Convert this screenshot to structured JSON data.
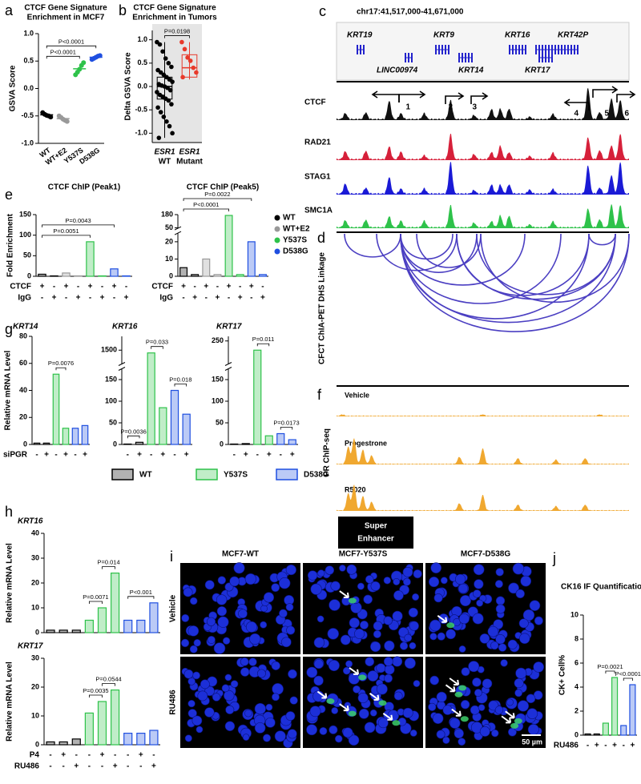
{
  "figure": {
    "panel_labels": [
      "a",
      "b",
      "c",
      "d",
      "e",
      "f",
      "g",
      "h",
      "i",
      "j"
    ],
    "genome": {
      "region": "chr17:41,517,000-41,671,000",
      "genes": [
        "KRT19",
        "LINC00974",
        "KRT9",
        "KRT14",
        "KRT16",
        "KRT42P",
        "KRT17"
      ],
      "tracks": [
        {
          "name": "CTCF",
          "color": "#111111"
        },
        {
          "name": "RAD21",
          "color": "#d6203a"
        },
        {
          "name": "STAG1",
          "color": "#1a1ad6"
        },
        {
          "name": "SMC1A",
          "color": "#2ec24a"
        }
      ],
      "peak_labels": [
        "1",
        "2",
        "3",
        "4",
        "5",
        "6"
      ]
    },
    "linkage_label": "CFCT ChIA-PET DHS Linkage",
    "pr": {
      "label": "PR ChIP-seq",
      "tracks": [
        "Vehicle",
        "Progestrone",
        "R5020"
      ],
      "color": "#f0a830"
    },
    "super_enhancer": [
      "Super",
      "Enhancer"
    ],
    "mutant_legend": [
      {
        "name": "WT",
        "color": "#000000"
      },
      {
        "name": "Y537S",
        "color": "#2ec24a"
      },
      {
        "name": "D538G",
        "color": "#1f4fe0"
      }
    ],
    "if_images": {
      "columns": [
        "MCF7-WT",
        "MCF7-Y537S",
        "MCF7-D538G"
      ],
      "rows": [
        "Vehicle",
        "RU486"
      ],
      "scale": "50 µm"
    }
  },
  "chart_data": [
    {
      "type": "dot",
      "title": [
        "CTCF Gene Signature",
        "Enrichment in MCF7"
      ],
      "y_label": "GSVA Score",
      "categories": [
        "WT",
        "WT+E2",
        "Y537S",
        "D538G"
      ],
      "colors": [
        "#000000",
        "#999999",
        "#2ec24a",
        "#1f4fe0"
      ],
      "values": [
        -0.48,
        -0.55,
        0.36,
        0.57
      ],
      "points": [
        [
          -0.44,
          -0.47,
          -0.49,
          -0.5,
          -0.52
        ],
        [
          -0.5,
          -0.53,
          -0.56,
          -0.58,
          -0.6
        ],
        [
          0.25,
          0.3,
          0.35,
          0.42,
          0.47
        ],
        [
          0.53,
          0.55,
          0.57,
          0.59,
          0.6
        ]
      ],
      "ylim": [
        -1.0,
        1.0
      ],
      "yticks": [
        {
          "value": -1,
          "label": "-1.0"
        },
        {
          "value": -0.5,
          "label": "-0.5"
        },
        {
          "value": 0,
          "label": "0.0"
        },
        {
          "value": 0.5,
          "label": "0.5"
        },
        {
          "value": 1,
          "label": "1.0"
        }
      ],
      "annotations": [
        {
          "text": "P<0.0001",
          "between": [
            0,
            2
          ]
        },
        {
          "text": "P<0.0001",
          "between": [
            0,
            3
          ]
        }
      ]
    },
    {
      "type": "box",
      "title": [
        "CTCF Gene Signature",
        "Enrichment in Tumors"
      ],
      "y_label": "Delta GSVA Score",
      "categories": [
        [
          "ESR1",
          "WT"
        ],
        [
          "ESR1",
          "Mutant"
        ]
      ],
      "colors": [
        "#000000",
        "#e8392a"
      ],
      "boxes": [
        {
          "whisker_low": -1.1,
          "q1": -0.27,
          "median": 0.0,
          "q3": 0.2,
          "whisker_high": 0.95
        },
        {
          "whisker_low": 0.15,
          "q1": 0.2,
          "median": 0.4,
          "q3": 0.68,
          "whisker_high": 0.95
        }
      ],
      "points": [
        [
          0.95,
          0.9,
          0.75,
          0.6,
          0.5,
          0.42,
          0.35,
          0.3,
          0.25,
          0.2,
          0.15,
          0.1,
          0.05,
          0.02,
          0.0,
          -0.03,
          -0.08,
          -0.12,
          -0.18,
          -0.22,
          -0.26,
          -0.3,
          -0.38,
          -0.45,
          -0.55,
          -0.65,
          -0.75,
          -0.85,
          -1.0,
          -1.1
        ],
        [
          0.95,
          0.8,
          0.62,
          0.55,
          0.4,
          0.3,
          0.2
        ]
      ],
      "ylim": [
        -1.2,
        1.2
      ],
      "yticks": [
        {
          "value": -1,
          "label": "-1.0"
        },
        {
          "value": -0.5,
          "label": "-0.5"
        },
        {
          "value": 0,
          "label": "0.0"
        },
        {
          "value": 0.5,
          "label": "0.5"
        },
        {
          "value": 1,
          "label": "1.0"
        }
      ],
      "annotations": [
        {
          "text": "P=0.0198",
          "between": [
            0,
            1
          ]
        }
      ]
    },
    {
      "type": "bar",
      "title": [
        "CTCF ChIP (Peak1)"
      ],
      "y_label": "Fold Enrichment",
      "values": [
        5,
        1,
        8,
        1,
        84,
        1,
        18,
        1
      ],
      "colors": [
        "#000000",
        "#000000",
        "#999999",
        "#999999",
        "#2ec24a",
        "#2ec24a",
        "#1f4fe0",
        "#1f4fe0"
      ],
      "ylim": [
        0,
        150
      ],
      "yticks": [
        0,
        50,
        100,
        150
      ],
      "rows": [
        {
          "name": "CTCF",
          "marks": [
            "+",
            "-",
            "+",
            "-",
            "+",
            "-",
            "+",
            "-"
          ]
        },
        {
          "name": "IgG",
          "marks": [
            "-",
            "+",
            "-",
            "+",
            "-",
            "+",
            "-",
            "+"
          ]
        }
      ],
      "annotations": [
        {
          "text": "P=0.0051",
          "between": [
            0,
            4
          ]
        },
        {
          "text": "P=0.0043",
          "between": [
            0,
            6
          ]
        }
      ]
    },
    {
      "type": "bar",
      "title": [
        "CTCF ChIP (Peak5)"
      ],
      "values": [
        5,
        1,
        10,
        1,
        172,
        1,
        20,
        1
      ],
      "colors": [
        "#000000",
        "#000000",
        "#999999",
        "#999999",
        "#2ec24a",
        "#2ec24a",
        "#1f4fe0",
        "#1f4fe0"
      ],
      "ylim": [
        0,
        180
      ],
      "ybreak": [
        25,
        45
      ],
      "yticks": [
        0,
        10,
        20,
        50,
        180
      ],
      "rows": [
        {
          "name": "CTCF",
          "marks": [
            "+",
            "-",
            "+",
            "-",
            "+",
            "-",
            "+",
            "-"
          ]
        },
        {
          "name": "IgG",
          "marks": [
            "-",
            "+",
            "-",
            "+",
            "-",
            "+",
            "-",
            "+"
          ]
        }
      ],
      "annotations": [
        {
          "text": "P<0.0001",
          "between": [
            0,
            4
          ]
        },
        {
          "text": "P=0.0022",
          "between": [
            0,
            6
          ]
        }
      ],
      "legend": [
        {
          "name": "WT",
          "color": "#000000"
        },
        {
          "name": "WT+E2",
          "color": "#999999"
        },
        {
          "name": "Y537S",
          "color": "#2ec24a"
        },
        {
          "name": "D538G",
          "color": "#1f4fe0"
        }
      ]
    },
    {
      "type": "bar",
      "title": [
        "KRT14"
      ],
      "y_label": "Relative mRNA Level",
      "values": [
        1,
        1,
        52,
        12,
        12,
        14
      ],
      "colors": [
        "#000000",
        "#000000",
        "#2ec24a",
        "#2ec24a",
        "#1f4fe0",
        "#1f4fe0"
      ],
      "ylim": [
        0,
        80
      ],
      "yticks": [
        0,
        20,
        40,
        60,
        80
      ],
      "rows": [
        {
          "name": "siPGR",
          "marks": [
            "-",
            "+",
            "-",
            "+",
            "-",
            "+"
          ]
        }
      ],
      "annotations": [
        {
          "text": "P=0.0076",
          "between": [
            2,
            3
          ]
        }
      ]
    },
    {
      "type": "bar",
      "title": [
        "KRT16"
      ],
      "values": [
        1,
        5,
        1480,
        85,
        125,
        70
      ],
      "colors": [
        "#000000",
        "#000000",
        "#2ec24a",
        "#2ec24a",
        "#1f4fe0",
        "#1f4fe0"
      ],
      "ylim": [
        0,
        1600
      ],
      "ybreak": [
        175,
        1400
      ],
      "yticks": [
        0,
        50,
        100,
        150,
        1500
      ],
      "rows": [
        {
          "marks": [
            "-",
            "+",
            "-",
            "+",
            "-",
            "+"
          ]
        }
      ],
      "annotations": [
        {
          "text": "P=0.0036",
          "between": [
            0,
            1
          ]
        },
        {
          "text": "P=0.033",
          "between": [
            2,
            3
          ]
        },
        {
          "text": "P=0.018",
          "between": [
            4,
            5
          ]
        }
      ]
    },
    {
      "type": "bar",
      "title": [
        "KRT17"
      ],
      "values": [
        1,
        2,
        230,
        20,
        25,
        11
      ],
      "colors": [
        "#000000",
        "#000000",
        "#2ec24a",
        "#2ec24a",
        "#1f4fe0",
        "#1f4fe0"
      ],
      "ylim": [
        0,
        260
      ],
      "ybreak": [
        175,
        200
      ],
      "yticks": [
        0,
        50,
        100,
        150,
        250
      ],
      "rows": [
        {
          "marks": [
            "-",
            "+",
            "-",
            "+",
            "-",
            "+"
          ]
        }
      ],
      "annotations": [
        {
          "text": "P=0.011",
          "between": [
            2,
            3
          ]
        },
        {
          "text": "P=0.0173",
          "between": [
            4,
            5
          ]
        }
      ]
    },
    {
      "type": "bar",
      "title": [
        "KRT16"
      ],
      "y_label": "Relative mRNA Level",
      "values": [
        1,
        1,
        1,
        5,
        10,
        24,
        5,
        5,
        12
      ],
      "colors": [
        "#000000",
        "#000000",
        "#000000",
        "#2ec24a",
        "#2ec24a",
        "#2ec24a",
        "#1f4fe0",
        "#1f4fe0",
        "#1f4fe0"
      ],
      "ylim": [
        0,
        40
      ],
      "yticks": [
        0,
        10,
        20,
        30,
        40
      ],
      "annotations": [
        {
          "text": "P=0.0071",
          "between": [
            3,
            4
          ]
        },
        {
          "text": "P=0.014",
          "between": [
            4,
            5
          ]
        },
        {
          "text": "P<0.001",
          "between": [
            6,
            8
          ]
        }
      ]
    },
    {
      "type": "bar",
      "title": [
        "KRT17"
      ],
      "y_label": "Relative mRNA Level",
      "values": [
        1,
        1,
        2,
        11,
        15,
        19,
        4,
        4,
        5
      ],
      "colors": [
        "#000000",
        "#000000",
        "#000000",
        "#2ec24a",
        "#2ec24a",
        "#2ec24a",
        "#1f4fe0",
        "#1f4fe0",
        "#1f4fe0"
      ],
      "ylim": [
        0,
        30
      ],
      "yticks": [
        0,
        10,
        20,
        30
      ],
      "rows": [
        {
          "name": "P4",
          "marks": [
            "-",
            "+",
            "-",
            "-",
            "+",
            "-",
            "-",
            "+",
            "-"
          ]
        },
        {
          "name": "RU486",
          "marks": [
            "-",
            "-",
            "+",
            "-",
            "-",
            "+",
            "-",
            "-",
            "+"
          ]
        }
      ],
      "annotations": [
        {
          "text": "P=0.0035",
          "between": [
            3,
            4
          ]
        },
        {
          "text": "P=0.0544",
          "between": [
            4,
            5
          ]
        }
      ]
    },
    {
      "type": "bar",
      "title": [
        "CK16 IF Quantification"
      ],
      "y_label": "CK+ Cell%",
      "values": [
        0.1,
        0.1,
        1.0,
        4.8,
        0.8,
        4.2
      ],
      "colors": [
        "#000000",
        "#000000",
        "#2ec24a",
        "#2ec24a",
        "#1f4fe0",
        "#1f4fe0"
      ],
      "ylim": [
        0,
        10
      ],
      "yticks": [
        0,
        2,
        4,
        6,
        8,
        10
      ],
      "rows": [
        {
          "name": "RU486",
          "marks": [
            "-",
            "+",
            "-",
            "+",
            "-",
            "+"
          ]
        }
      ],
      "annotations": [
        {
          "text": "P=0.0021",
          "between": [
            2,
            3
          ]
        },
        {
          "text": "P<0.0001",
          "between": [
            4,
            5
          ]
        }
      ]
    }
  ]
}
